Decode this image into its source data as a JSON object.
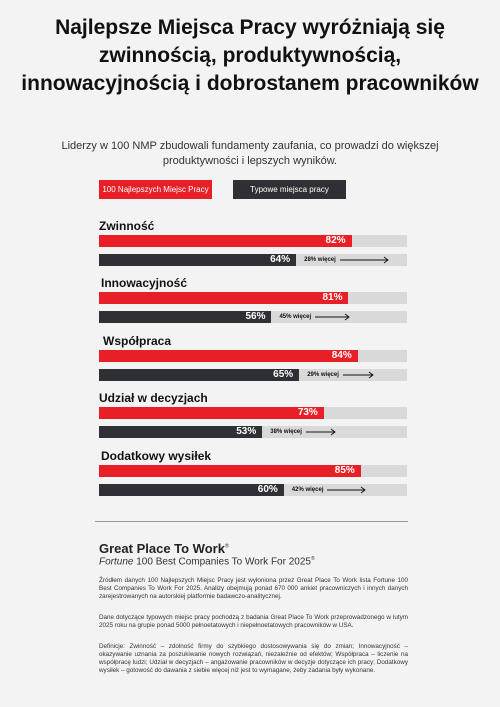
{
  "title": "Najlepsze Miejsca Pracy wyróżniają się zwinnością, produktywnością, innowacyjnością i dobrostanem pracowników",
  "subtitle": "Liderzy w 100 NMP zbudowali fundamenty zaufania, co prowadzi do większej produktywności i lepszych wyników.",
  "legend": [
    "100 Najlepszych Miejsc Pracy",
    "Typowe miejsca pracy"
  ],
  "colors": {
    "top": "#e81f27",
    "typical": "#2e3035",
    "track": "#d9d9d9"
  },
  "chart_data": {
    "type": "bar",
    "orientation": "horizontal",
    "categories": [
      "Zwinność",
      "Innowacyjność",
      "Współpraca",
      "Udział w decyzjach",
      "Dodatkowy wysiłek"
    ],
    "series": [
      {
        "name": "100 Najlepszych Miejsc Pracy",
        "values": [
          82,
          81,
          84,
          73,
          85
        ]
      },
      {
        "name": "Typowe miejsca pracy",
        "values": [
          64,
          56,
          65,
          53,
          60
        ]
      }
    ],
    "labels_top": [
      "82%",
      "81%",
      "84%",
      "73%",
      "85%"
    ],
    "labels_bottom": [
      "64%",
      "56%",
      "65%",
      "53%",
      "60%"
    ],
    "differences": [
      "28% więcej",
      "45%  więcej",
      "29% więcej",
      "38% więcej",
      "42% więcej"
    ],
    "xlim": [
      0,
      100
    ],
    "unit": "%"
  },
  "brand": {
    "name": "Great Place To Work",
    "trademark": "®",
    "fortune": "Fortune",
    "subtitle_rest": " 100 Best Companies To Work For 2025",
    "subtitle_mark": "®"
  },
  "notes": [
    "Źródłem danych 100 Najlepszych Miejsc Pracy jest wyłoniona przez Great Place To Work lista Fortune 100 Best Companies To Work For 2025. Analizy obejmują ponad 670 000 ankiet pracowniczych i innych danych zarejestrowanych na autorskiej platformie badawczo-analitycznej.",
    "Dane dotyczące typowych miejsc pracy pochodzą z badania Great Place To Work przeprowadzonego w lutym 2025 roku na grupie ponad 5000 pełnoetatowych i niepełnoetatowych pracowników w USA.",
    "Definicje: Zwinność – zdolność firmy do szybkiego dostosowywania się do zmian; Innowacyjność – okazywanie uznania za poszukiwanie nowych rozwiązań, niezależnie od efektów; Współpraca – liczenie na współpracę ludzi; Udział w decyzjach – angażowanie pracowników w decyzje dotyczące ich pracy; Dodatkowy wysiłek – gotowość do dawania z siebie więcej niż jest to wymagane, żeby zadania były wykonane."
  ]
}
